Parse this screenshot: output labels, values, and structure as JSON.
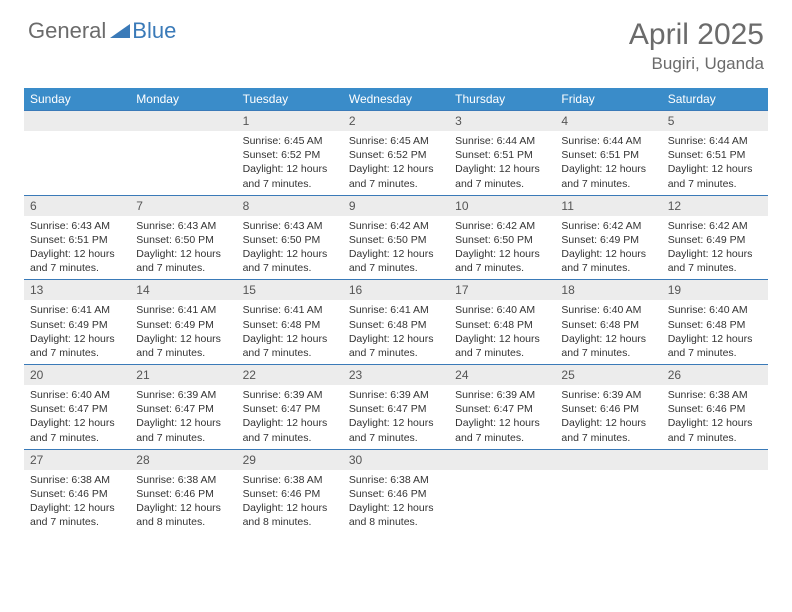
{
  "logo": {
    "part1": "General",
    "part2": "Blue"
  },
  "title": "April 2025",
  "location": "Bugiri, Uganda",
  "colors": {
    "header_bg": "#3a8cc9",
    "header_text": "#ffffff",
    "daynum_bg": "#ececec",
    "row_border": "#3a7ab8",
    "logo_gray": "#6b6b6b",
    "logo_blue": "#3a7ab8",
    "body_text": "#333333"
  },
  "weekdays": [
    "Sunday",
    "Monday",
    "Tuesday",
    "Wednesday",
    "Thursday",
    "Friday",
    "Saturday"
  ],
  "weeks": [
    [
      null,
      null,
      {
        "n": "1",
        "sr": "6:45 AM",
        "ss": "6:52 PM",
        "dl": "12 hours and 7 minutes."
      },
      {
        "n": "2",
        "sr": "6:45 AM",
        "ss": "6:52 PM",
        "dl": "12 hours and 7 minutes."
      },
      {
        "n": "3",
        "sr": "6:44 AM",
        "ss": "6:51 PM",
        "dl": "12 hours and 7 minutes."
      },
      {
        "n": "4",
        "sr": "6:44 AM",
        "ss": "6:51 PM",
        "dl": "12 hours and 7 minutes."
      },
      {
        "n": "5",
        "sr": "6:44 AM",
        "ss": "6:51 PM",
        "dl": "12 hours and 7 minutes."
      }
    ],
    [
      {
        "n": "6",
        "sr": "6:43 AM",
        "ss": "6:51 PM",
        "dl": "12 hours and 7 minutes."
      },
      {
        "n": "7",
        "sr": "6:43 AM",
        "ss": "6:50 PM",
        "dl": "12 hours and 7 minutes."
      },
      {
        "n": "8",
        "sr": "6:43 AM",
        "ss": "6:50 PM",
        "dl": "12 hours and 7 minutes."
      },
      {
        "n": "9",
        "sr": "6:42 AM",
        "ss": "6:50 PM",
        "dl": "12 hours and 7 minutes."
      },
      {
        "n": "10",
        "sr": "6:42 AM",
        "ss": "6:50 PM",
        "dl": "12 hours and 7 minutes."
      },
      {
        "n": "11",
        "sr": "6:42 AM",
        "ss": "6:49 PM",
        "dl": "12 hours and 7 minutes."
      },
      {
        "n": "12",
        "sr": "6:42 AM",
        "ss": "6:49 PM",
        "dl": "12 hours and 7 minutes."
      }
    ],
    [
      {
        "n": "13",
        "sr": "6:41 AM",
        "ss": "6:49 PM",
        "dl": "12 hours and 7 minutes."
      },
      {
        "n": "14",
        "sr": "6:41 AM",
        "ss": "6:49 PM",
        "dl": "12 hours and 7 minutes."
      },
      {
        "n": "15",
        "sr": "6:41 AM",
        "ss": "6:48 PM",
        "dl": "12 hours and 7 minutes."
      },
      {
        "n": "16",
        "sr": "6:41 AM",
        "ss": "6:48 PM",
        "dl": "12 hours and 7 minutes."
      },
      {
        "n": "17",
        "sr": "6:40 AM",
        "ss": "6:48 PM",
        "dl": "12 hours and 7 minutes."
      },
      {
        "n": "18",
        "sr": "6:40 AM",
        "ss": "6:48 PM",
        "dl": "12 hours and 7 minutes."
      },
      {
        "n": "19",
        "sr": "6:40 AM",
        "ss": "6:48 PM",
        "dl": "12 hours and 7 minutes."
      }
    ],
    [
      {
        "n": "20",
        "sr": "6:40 AM",
        "ss": "6:47 PM",
        "dl": "12 hours and 7 minutes."
      },
      {
        "n": "21",
        "sr": "6:39 AM",
        "ss": "6:47 PM",
        "dl": "12 hours and 7 minutes."
      },
      {
        "n": "22",
        "sr": "6:39 AM",
        "ss": "6:47 PM",
        "dl": "12 hours and 7 minutes."
      },
      {
        "n": "23",
        "sr": "6:39 AM",
        "ss": "6:47 PM",
        "dl": "12 hours and 7 minutes."
      },
      {
        "n": "24",
        "sr": "6:39 AM",
        "ss": "6:47 PM",
        "dl": "12 hours and 7 minutes."
      },
      {
        "n": "25",
        "sr": "6:39 AM",
        "ss": "6:46 PM",
        "dl": "12 hours and 7 minutes."
      },
      {
        "n": "26",
        "sr": "6:38 AM",
        "ss": "6:46 PM",
        "dl": "12 hours and 7 minutes."
      }
    ],
    [
      {
        "n": "27",
        "sr": "6:38 AM",
        "ss": "6:46 PM",
        "dl": "12 hours and 7 minutes."
      },
      {
        "n": "28",
        "sr": "6:38 AM",
        "ss": "6:46 PM",
        "dl": "12 hours and 8 minutes."
      },
      {
        "n": "29",
        "sr": "6:38 AM",
        "ss": "6:46 PM",
        "dl": "12 hours and 8 minutes."
      },
      {
        "n": "30",
        "sr": "6:38 AM",
        "ss": "6:46 PM",
        "dl": "12 hours and 8 minutes."
      },
      null,
      null,
      null
    ]
  ],
  "labels": {
    "sunrise": "Sunrise:",
    "sunset": "Sunset:",
    "daylight": "Daylight:"
  }
}
